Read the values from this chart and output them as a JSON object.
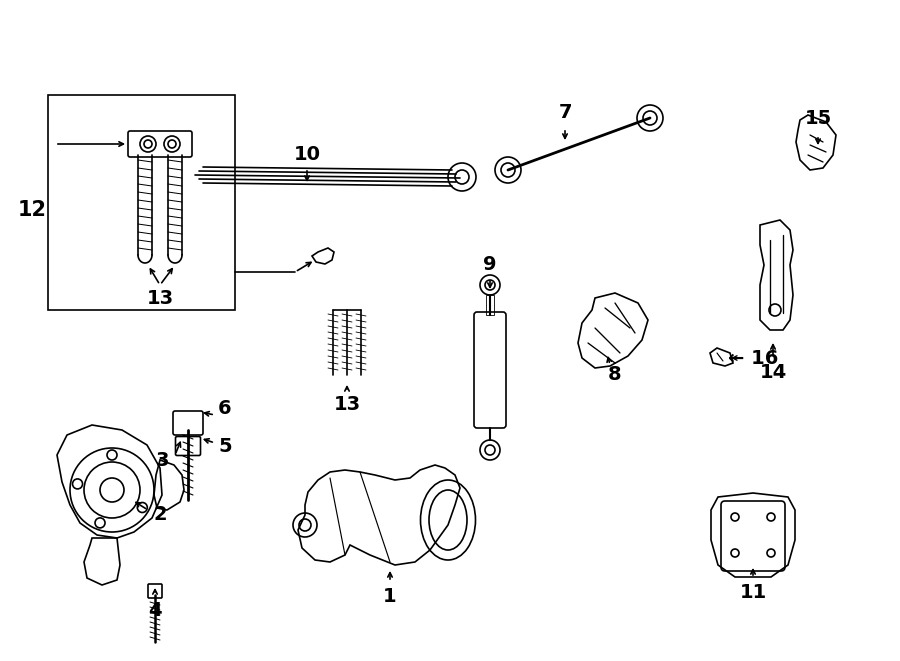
{
  "background_color": "#ffffff",
  "line_color": "#000000",
  "fig_width": 9.0,
  "fig_height": 6.61,
  "dpi": 100,
  "imgW": 900,
  "imgH": 661
}
